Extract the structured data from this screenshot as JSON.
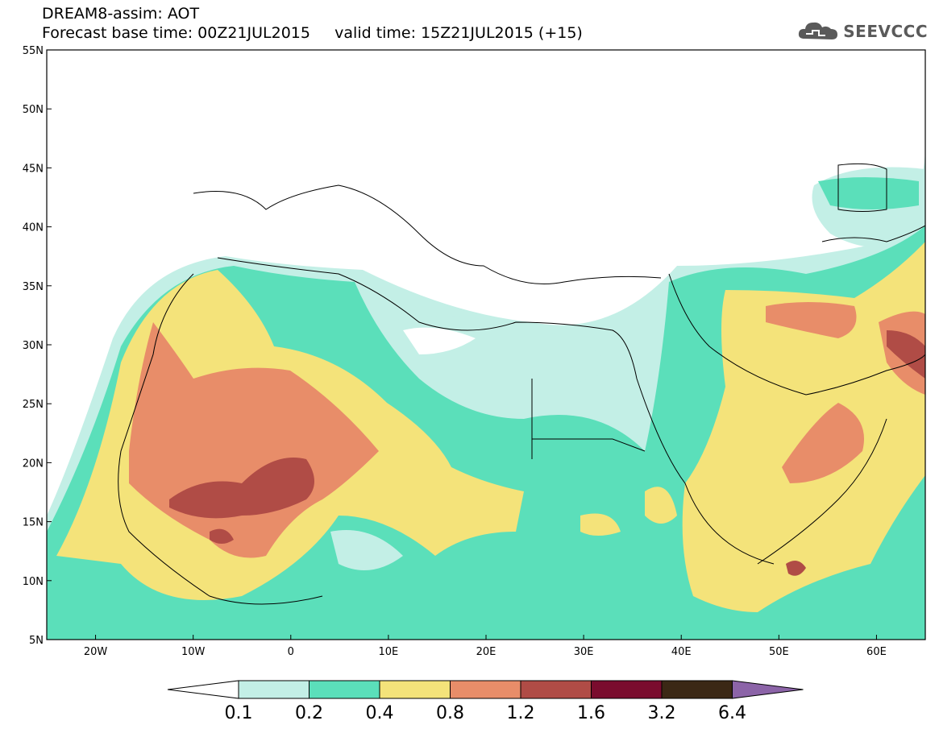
{
  "header": {
    "title_line1": "DREAM8-assim: AOT",
    "title_line2": "Forecast base time: 00Z21JUL2015     valid time: 15Z21JUL2015 (+15)",
    "brand": "SEEVCCC"
  },
  "map": {
    "lon_range": [
      -25,
      65
    ],
    "lat_range": [
      5,
      55
    ],
    "lat_ticks": [
      "55N",
      "50N",
      "45N",
      "40N",
      "35N",
      "30N",
      "25N",
      "20N",
      "15N",
      "10N",
      "5N"
    ],
    "lon_ticks": [
      "20W",
      "10W",
      "0",
      "10E",
      "20E",
      "30E",
      "40E",
      "50E",
      "60E"
    ]
  },
  "colorbar": {
    "colors": [
      "#c3efe6",
      "#5bdfba",
      "#f4e37a",
      "#e88d69",
      "#b04c46",
      "#7a0c2e",
      "#3b2815",
      "#8c64a8"
    ],
    "labels": [
      "0.1",
      "0.2",
      "0.4",
      "0.8",
      "1.2",
      "1.6",
      "3.2",
      "6.4"
    ]
  }
}
